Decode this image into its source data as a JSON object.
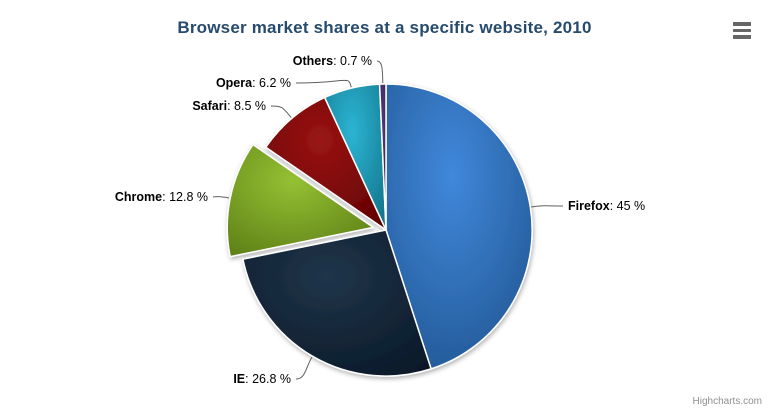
{
  "title": "Browser market shares at a specific website, 2010",
  "credits": "Highcharts.com",
  "icons": {
    "context_menu": "hamburger-menu-icon"
  },
  "colors": {
    "title": "#274b6d",
    "connector": "#606060",
    "menu_icon": "#666666",
    "credits_text": "#909090",
    "background": "#ffffff",
    "slice_border": "#ffffff"
  },
  "chart_data": {
    "type": "pie",
    "title": "Browser market shares at a specific website, 2010",
    "unit": "%",
    "legend": "none",
    "total": 100,
    "categories": [
      "Firefox",
      "IE",
      "Chrome",
      "Safari",
      "Opera",
      "Others"
    ],
    "values": [
      45,
      26.8,
      12.8,
      8.5,
      6.2,
      0.7
    ],
    "slices": [
      {
        "name": "Firefox",
        "value": 45,
        "value_text": ": 45 %",
        "color": "#2f7ed8",
        "sliced": false
      },
      {
        "name": "IE",
        "value": 26.8,
        "value_text": ": 26.8 %",
        "color": "#0d233a",
        "sliced": false
      },
      {
        "name": "Chrome",
        "value": 12.8,
        "value_text": ": 12.8 %",
        "color": "#8bbc21",
        "sliced": true
      },
      {
        "name": "Safari",
        "value": 8.5,
        "value_text": ": 8.5 %",
        "color": "#910000",
        "sliced": false
      },
      {
        "name": "Opera",
        "value": 6.2,
        "value_text": ": 6.2 %",
        "color": "#1aadce",
        "sliced": false
      },
      {
        "name": "Others",
        "value": 0.7,
        "value_text": ": 0.7 %",
        "color": "#492970",
        "sliced": false
      }
    ]
  }
}
